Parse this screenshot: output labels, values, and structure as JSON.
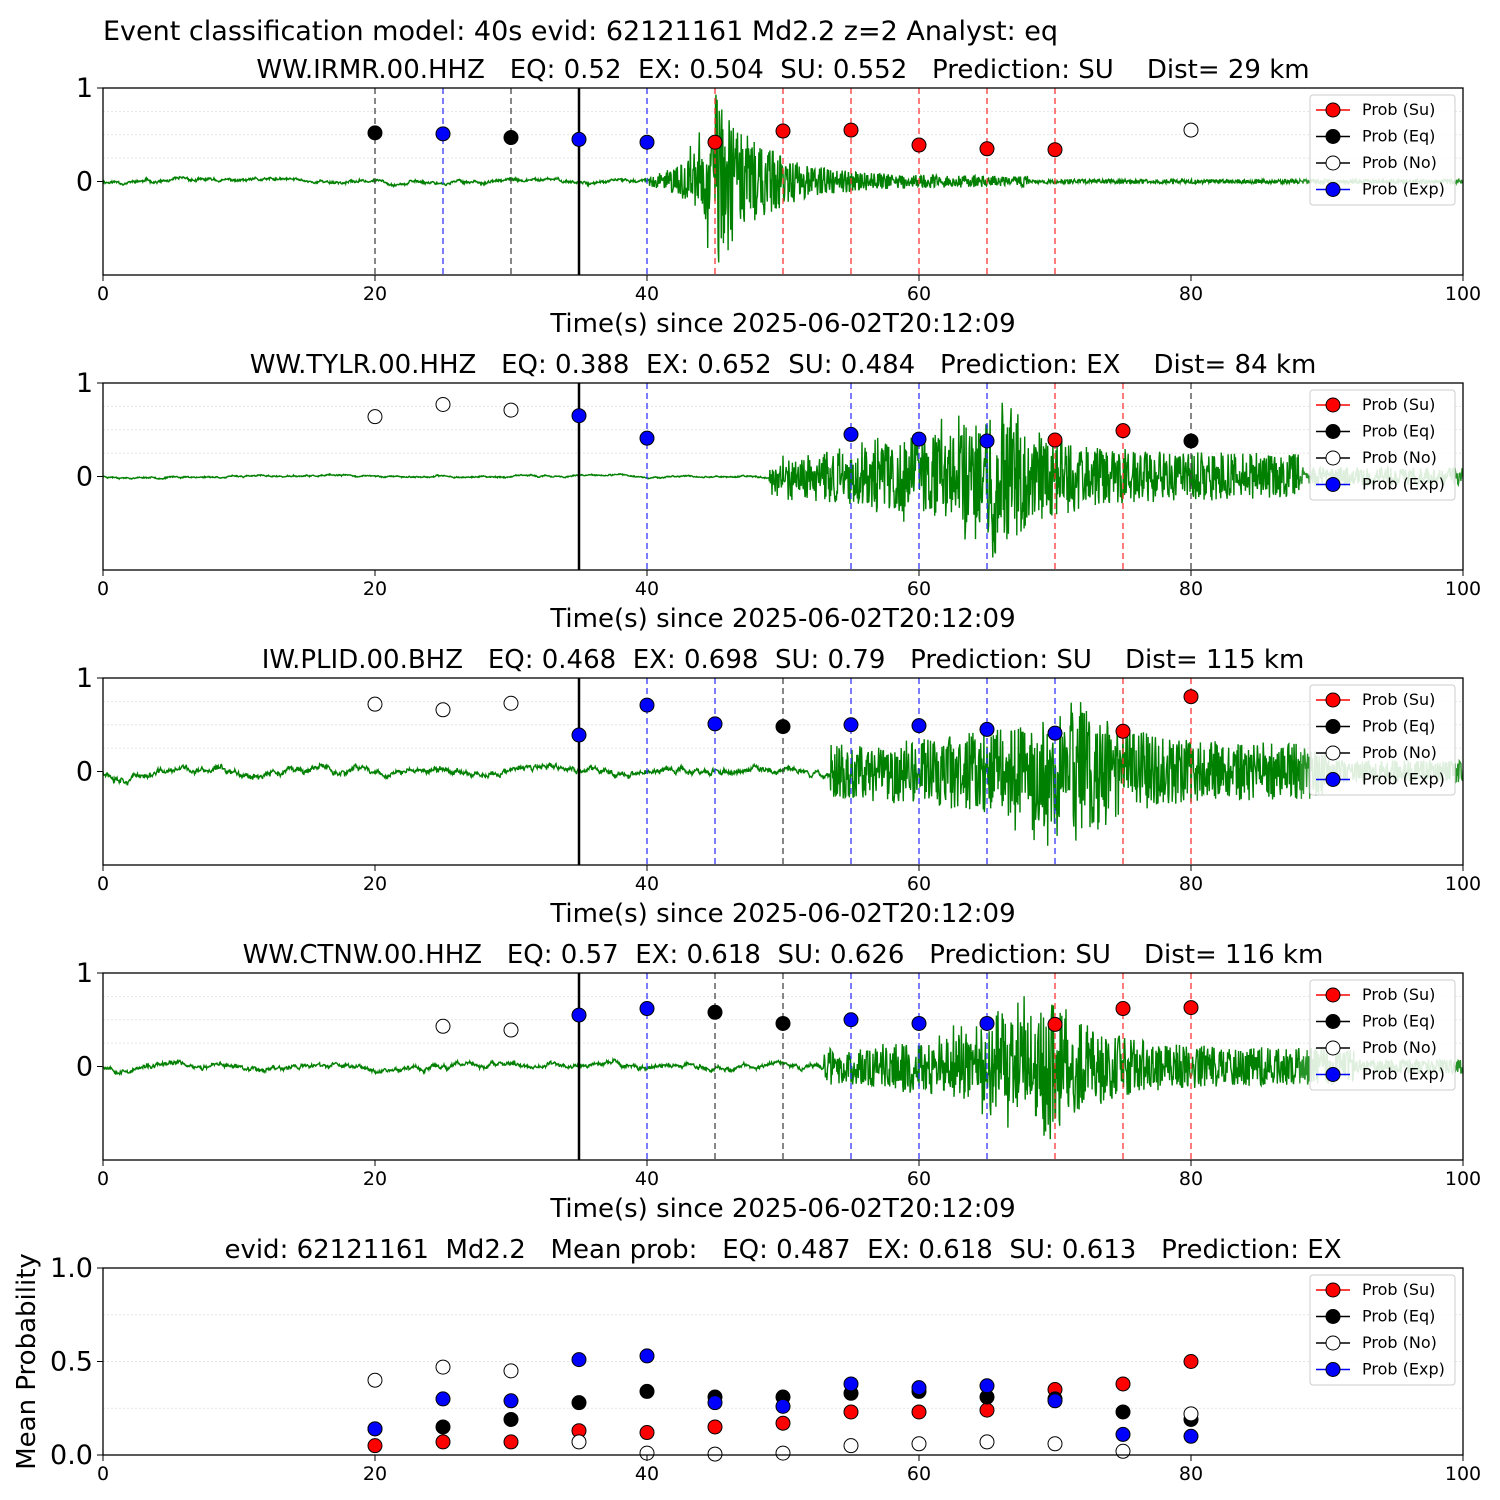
{
  "figure": {
    "title": "Event classification model: 40s evid: 62121161 Md2.2 z=2 Analyst: eq",
    "xlabel": "Time(s) since 2025-06-02T20:12:09"
  },
  "legend_labels": [
    "Prob (Su)",
    "Prob (Eq)",
    "Prob (No)",
    "Prob (Exp)"
  ],
  "colors": {
    "su": "#ff0000",
    "eq": "#000000",
    "no": "#ffffff",
    "exp": "#0000ff",
    "waveform": "#008000",
    "waveform_light": "#b4d9b4"
  },
  "chart_data": [
    {
      "type": "scatter",
      "title": "WW.IRMR.00.HHZ   EQ: 0.52  EX: 0.504  SU: 0.552   Prediction: SU    Dist= 29 km",
      "xlabel": "Time(s) since 2025-06-02T20:12:09",
      "xlim": [
        0,
        100
      ],
      "ylim": [
        -1,
        1
      ],
      "xticks": [
        0,
        20,
        40,
        60,
        80,
        100
      ],
      "yticks": [
        0,
        1
      ],
      "reference_line_x": 35,
      "waveform": {
        "onset": 40,
        "peak_time": 45,
        "decay_end": 68,
        "pre_amp": 0.02,
        "peak_amp": 0.95,
        "coda_amp": 0.06,
        "light_from": 88,
        "seed": 11
      },
      "vlines": [
        {
          "x": 20,
          "class": "eq"
        },
        {
          "x": 25,
          "class": "exp"
        },
        {
          "x": 30,
          "class": "eq"
        },
        {
          "x": 40,
          "class": "exp"
        },
        {
          "x": 45,
          "class": "su"
        },
        {
          "x": 50,
          "class": "su"
        },
        {
          "x": 55,
          "class": "su"
        },
        {
          "x": 60,
          "class": "su"
        },
        {
          "x": 65,
          "class": "su"
        },
        {
          "x": 70,
          "class": "su"
        }
      ],
      "points": [
        {
          "x": 20,
          "y": 0.52,
          "class": "eq"
        },
        {
          "x": 25,
          "y": 0.51,
          "class": "exp"
        },
        {
          "x": 30,
          "y": 0.47,
          "class": "eq"
        },
        {
          "x": 35,
          "y": 0.45,
          "class": "exp"
        },
        {
          "x": 40,
          "y": 0.42,
          "class": "exp"
        },
        {
          "x": 45,
          "y": 0.42,
          "class": "su"
        },
        {
          "x": 50,
          "y": 0.54,
          "class": "su"
        },
        {
          "x": 55,
          "y": 0.55,
          "class": "su"
        },
        {
          "x": 60,
          "y": 0.39,
          "class": "su"
        },
        {
          "x": 65,
          "y": 0.35,
          "class": "su"
        },
        {
          "x": 70,
          "y": 0.34,
          "class": "su"
        },
        {
          "x": 80,
          "y": 0.55,
          "class": "no"
        }
      ]
    },
    {
      "type": "scatter",
      "title": "WW.TYLR.00.HHZ   EQ: 0.388  EX: 0.652  SU: 0.484   Prediction: EX    Dist= 84 km",
      "xlabel": "Time(s) since 2025-06-02T20:12:09",
      "xlim": [
        0,
        100
      ],
      "ylim": [
        -1,
        1
      ],
      "xticks": [
        0,
        20,
        40,
        60,
        80,
        100
      ],
      "yticks": [
        0,
        1
      ],
      "reference_line_x": 35,
      "waveform": {
        "onset": 49,
        "peak_time": 65.5,
        "decay_end": 88,
        "pre_amp": 0.01,
        "peak_amp": 0.95,
        "coda_amp": 0.25,
        "light_from": 88,
        "seed": 23
      },
      "vlines": [
        {
          "x": 40,
          "class": "exp"
        },
        {
          "x": 55,
          "class": "exp"
        },
        {
          "x": 60,
          "class": "exp"
        },
        {
          "x": 65,
          "class": "exp"
        },
        {
          "x": 70,
          "class": "su"
        },
        {
          "x": 75,
          "class": "su"
        },
        {
          "x": 80,
          "class": "eq"
        }
      ],
      "points": [
        {
          "x": 20,
          "y": 0.64,
          "class": "no"
        },
        {
          "x": 25,
          "y": 0.77,
          "class": "no"
        },
        {
          "x": 30,
          "y": 0.71,
          "class": "no"
        },
        {
          "x": 35,
          "y": 0.65,
          "class": "exp"
        },
        {
          "x": 40,
          "y": 0.41,
          "class": "exp"
        },
        {
          "x": 55,
          "y": 0.45,
          "class": "exp"
        },
        {
          "x": 60,
          "y": 0.4,
          "class": "exp"
        },
        {
          "x": 65,
          "y": 0.38,
          "class": "exp"
        },
        {
          "x": 70,
          "y": 0.39,
          "class": "su"
        },
        {
          "x": 75,
          "y": 0.49,
          "class": "su"
        },
        {
          "x": 80,
          "y": 0.38,
          "class": "eq"
        }
      ]
    },
    {
      "type": "scatter",
      "title": "IW.PLID.00.BHZ   EQ: 0.468  EX: 0.698  SU: 0.79   Prediction: SU    Dist= 115 km",
      "xlabel": "Time(s) since 2025-06-02T20:12:09",
      "xlim": [
        0,
        100
      ],
      "ylim": [
        -1,
        1
      ],
      "xticks": [
        0,
        20,
        40,
        60,
        80,
        100
      ],
      "yticks": [
        0,
        1
      ],
      "reference_line_x": 35,
      "waveform": {
        "onset": 53.5,
        "peak_time": 71,
        "decay_end": 90,
        "pre_amp": 0.04,
        "peak_amp": 0.9,
        "coda_amp": 0.3,
        "light_from": 88,
        "seed": 37
      },
      "vlines": [
        {
          "x": 40,
          "class": "exp"
        },
        {
          "x": 45,
          "class": "exp"
        },
        {
          "x": 50,
          "class": "eq"
        },
        {
          "x": 55,
          "class": "exp"
        },
        {
          "x": 60,
          "class": "exp"
        },
        {
          "x": 65,
          "class": "exp"
        },
        {
          "x": 70,
          "class": "exp"
        },
        {
          "x": 75,
          "class": "su"
        },
        {
          "x": 80,
          "class": "su"
        }
      ],
      "points": [
        {
          "x": 20,
          "y": 0.72,
          "class": "no"
        },
        {
          "x": 25,
          "y": 0.66,
          "class": "no"
        },
        {
          "x": 30,
          "y": 0.73,
          "class": "no"
        },
        {
          "x": 35,
          "y": 0.39,
          "class": "exp"
        },
        {
          "x": 40,
          "y": 0.71,
          "class": "exp"
        },
        {
          "x": 45,
          "y": 0.51,
          "class": "exp"
        },
        {
          "x": 50,
          "y": 0.48,
          "class": "eq"
        },
        {
          "x": 55,
          "y": 0.5,
          "class": "exp"
        },
        {
          "x": 60,
          "y": 0.49,
          "class": "exp"
        },
        {
          "x": 65,
          "y": 0.45,
          "class": "exp"
        },
        {
          "x": 70,
          "y": 0.41,
          "class": "exp"
        },
        {
          "x": 75,
          "y": 0.43,
          "class": "su"
        },
        {
          "x": 80,
          "y": 0.8,
          "class": "su"
        }
      ]
    },
    {
      "type": "scatter",
      "title": "WW.CTNW.00.HHZ   EQ: 0.57  EX: 0.618  SU: 0.626   Prediction: SU    Dist= 116 km",
      "xlabel": "Time(s) since 2025-06-02T20:12:09",
      "xlim": [
        0,
        100
      ],
      "ylim": [
        -1,
        1
      ],
      "xticks": [
        0,
        20,
        40,
        60,
        80,
        100
      ],
      "yticks": [
        0,
        1
      ],
      "reference_line_x": 35,
      "waveform": {
        "onset": 53,
        "peak_time": 69,
        "decay_end": 92,
        "pre_amp": 0.03,
        "peak_amp": 0.9,
        "coda_amp": 0.2,
        "light_from": 88,
        "seed": 53
      },
      "vlines": [
        {
          "x": 40,
          "class": "exp"
        },
        {
          "x": 45,
          "class": "eq"
        },
        {
          "x": 50,
          "class": "eq"
        },
        {
          "x": 55,
          "class": "exp"
        },
        {
          "x": 60,
          "class": "exp"
        },
        {
          "x": 65,
          "class": "exp"
        },
        {
          "x": 70,
          "class": "su"
        },
        {
          "x": 75,
          "class": "su"
        },
        {
          "x": 80,
          "class": "su"
        }
      ],
      "points": [
        {
          "x": 25,
          "y": 0.43,
          "class": "no"
        },
        {
          "x": 30,
          "y": 0.39,
          "class": "no"
        },
        {
          "x": 35,
          "y": 0.55,
          "class": "exp"
        },
        {
          "x": 40,
          "y": 0.62,
          "class": "exp"
        },
        {
          "x": 45,
          "y": 0.58,
          "class": "eq"
        },
        {
          "x": 50,
          "y": 0.46,
          "class": "eq"
        },
        {
          "x": 55,
          "y": 0.5,
          "class": "exp"
        },
        {
          "x": 60,
          "y": 0.46,
          "class": "exp"
        },
        {
          "x": 65,
          "y": 0.46,
          "class": "exp"
        },
        {
          "x": 70,
          "y": 0.45,
          "class": "su"
        },
        {
          "x": 75,
          "y": 0.62,
          "class": "su"
        },
        {
          "x": 80,
          "y": 0.63,
          "class": "su"
        }
      ]
    },
    {
      "type": "scatter",
      "title": "evid: 62121161  Md2.2   Mean prob:   EQ: 0.487  EX: 0.618  SU: 0.613   Prediction: EX",
      "ylabel": "Mean Probability",
      "xlim": [
        0,
        100
      ],
      "ylim": [
        0,
        1
      ],
      "xticks": [
        0,
        20,
        40,
        60,
        80,
        100
      ],
      "yticks": [
        0,
        0.5,
        1
      ],
      "ytick_labels": [
        "0.0",
        "0.5",
        "1.0"
      ],
      "series": [
        {
          "name": "Prob (Su)",
          "class": "su",
          "x": [
            20,
            25,
            30,
            35,
            40,
            45,
            50,
            55,
            60,
            65,
            70,
            75,
            80
          ],
          "values": [
            0.05,
            0.07,
            0.07,
            0.13,
            0.12,
            0.15,
            0.17,
            0.23,
            0.23,
            0.24,
            0.35,
            0.38,
            0.5
          ]
        },
        {
          "name": "Prob (Eq)",
          "class": "eq",
          "x": [
            20,
            25,
            30,
            35,
            40,
            45,
            50,
            55,
            60,
            65,
            70,
            75,
            80
          ],
          "values": [
            0.14,
            0.15,
            0.19,
            0.28,
            0.34,
            0.31,
            0.31,
            0.33,
            0.34,
            0.31,
            0.3,
            0.23,
            0.19
          ]
        },
        {
          "name": "Prob (No)",
          "class": "no",
          "x": [
            20,
            25,
            30,
            35,
            40,
            45,
            50,
            55,
            60,
            65,
            70,
            75,
            80
          ],
          "values": [
            0.4,
            0.47,
            0.45,
            0.07,
            0.01,
            0.005,
            0.01,
            0.05,
            0.06,
            0.07,
            0.06,
            0.02,
            0.22
          ]
        },
        {
          "name": "Prob (Exp)",
          "class": "exp",
          "x": [
            20,
            25,
            30,
            35,
            40,
            45,
            50,
            55,
            60,
            65,
            70,
            75,
            80
          ],
          "values": [
            0.14,
            0.3,
            0.29,
            0.51,
            0.53,
            0.28,
            0.26,
            0.38,
            0.36,
            0.37,
            0.29,
            0.11,
            0.1
          ]
        }
      ]
    }
  ]
}
